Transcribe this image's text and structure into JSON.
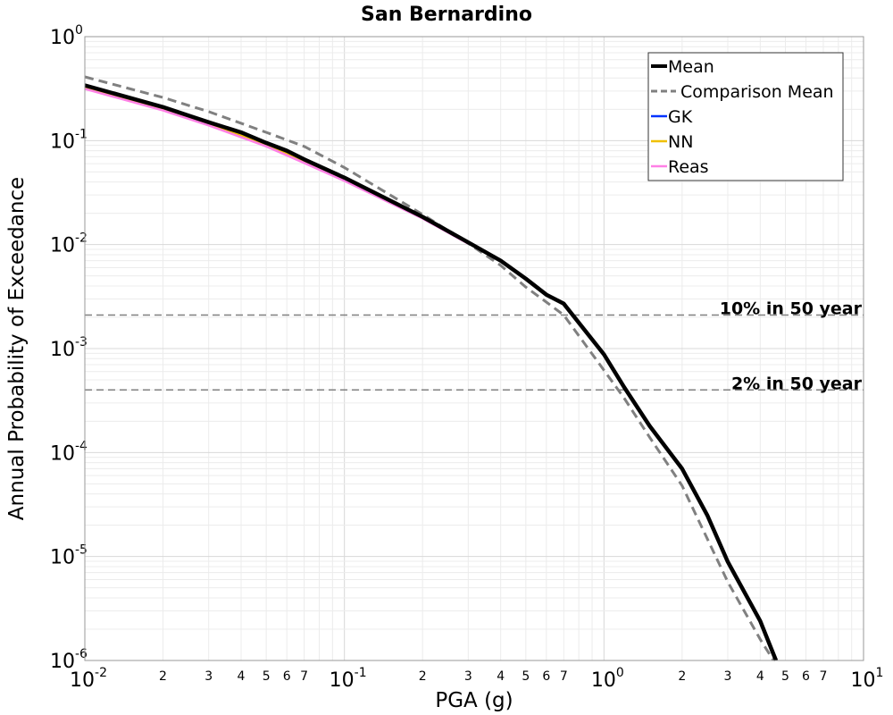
{
  "chart_data": {
    "type": "line",
    "title": "San Bernardino",
    "xlabel": "PGA (g)",
    "ylabel": "Annual Probability of Exceedance",
    "x_scale": "log",
    "y_scale": "log",
    "xlim": [
      0.01,
      10
    ],
    "ylim": [
      1e-06,
      1
    ],
    "grid": true,
    "legend_position": "top-right",
    "x_major_ticks": [
      {
        "base": "10",
        "exp": "-2"
      },
      {
        "base": "10",
        "exp": "-1"
      },
      {
        "base": "10",
        "exp": "0"
      },
      {
        "base": "10",
        "exp": "1"
      }
    ],
    "y_major_ticks": [
      {
        "base": "10",
        "exp": "0"
      },
      {
        "base": "10",
        "exp": "-1"
      },
      {
        "base": "10",
        "exp": "-2"
      },
      {
        "base": "10",
        "exp": "-3"
      },
      {
        "base": "10",
        "exp": "-4"
      },
      {
        "base": "10",
        "exp": "-5"
      },
      {
        "base": "10",
        "exp": "-6"
      }
    ],
    "x_minor_tick_labels": [
      "2",
      "3",
      "4",
      "5",
      "6",
      "7"
    ],
    "reference_lines": [
      {
        "label": "10% in 50 year",
        "y": 0.0021,
        "color": "#808080"
      },
      {
        "label": "2% in 50 year",
        "y": 0.0004,
        "color": "#808080"
      }
    ],
    "series": [
      {
        "name": "Mean",
        "color": "#000000",
        "dash": "solid",
        "x": [
          0.01,
          0.02,
          0.03,
          0.04,
          0.05,
          0.06,
          0.07,
          0.1,
          0.2,
          0.3,
          0.4,
          0.5,
          0.6,
          0.7,
          1.0,
          1.2,
          1.5,
          2.0,
          2.5,
          3.0,
          4.0,
          4.6
        ],
        "y": [
          0.34,
          0.21,
          0.15,
          0.12,
          0.095,
          0.08,
          0.066,
          0.044,
          0.0185,
          0.0105,
          0.007,
          0.0047,
          0.0033,
          0.0027,
          0.00088,
          0.00042,
          0.00018,
          7e-05,
          2.5e-05,
          8.9e-06,
          2.4e-06,
          1e-06
        ]
      },
      {
        "name": "Comparison Mean",
        "color": "#808080",
        "dash": "dashed",
        "x": [
          0.01,
          0.02,
          0.03,
          0.05,
          0.07,
          0.1,
          0.2,
          0.3,
          0.4,
          0.5,
          0.6,
          0.7,
          1.0,
          1.2,
          1.5,
          2.0,
          3.0,
          4.0,
          4.5
        ],
        "y": [
          0.41,
          0.26,
          0.19,
          0.12,
          0.088,
          0.055,
          0.0195,
          0.0103,
          0.0063,
          0.0039,
          0.0028,
          0.0021,
          0.00062,
          0.00033,
          0.00014,
          4.8e-05,
          5.7e-06,
          1.6e-06,
          1e-06
        ]
      },
      {
        "name": "GK",
        "color": "#0033ff",
        "dash": "solid",
        "x": [
          0.01,
          0.02,
          0.03,
          0.05,
          0.07,
          0.1,
          0.2,
          0.3
        ],
        "y": [
          0.335,
          0.205,
          0.148,
          0.093,
          0.064,
          0.043,
          0.0183,
          0.0104
        ]
      },
      {
        "name": "NN",
        "color": "#f0c000",
        "dash": "solid",
        "x": [
          0.01,
          0.02,
          0.03,
          0.05,
          0.07,
          0.1,
          0.2,
          0.3
        ],
        "y": [
          0.33,
          0.2,
          0.145,
          0.091,
          0.063,
          0.042,
          0.018,
          0.0103
        ]
      },
      {
        "name": "Reas",
        "color": "#ff80e6",
        "dash": "solid",
        "x": [
          0.01,
          0.02,
          0.03,
          0.05,
          0.07,
          0.1,
          0.2,
          0.3
        ],
        "y": [
          0.315,
          0.195,
          0.14,
          0.088,
          0.061,
          0.041,
          0.0178,
          0.0102
        ]
      }
    ]
  }
}
